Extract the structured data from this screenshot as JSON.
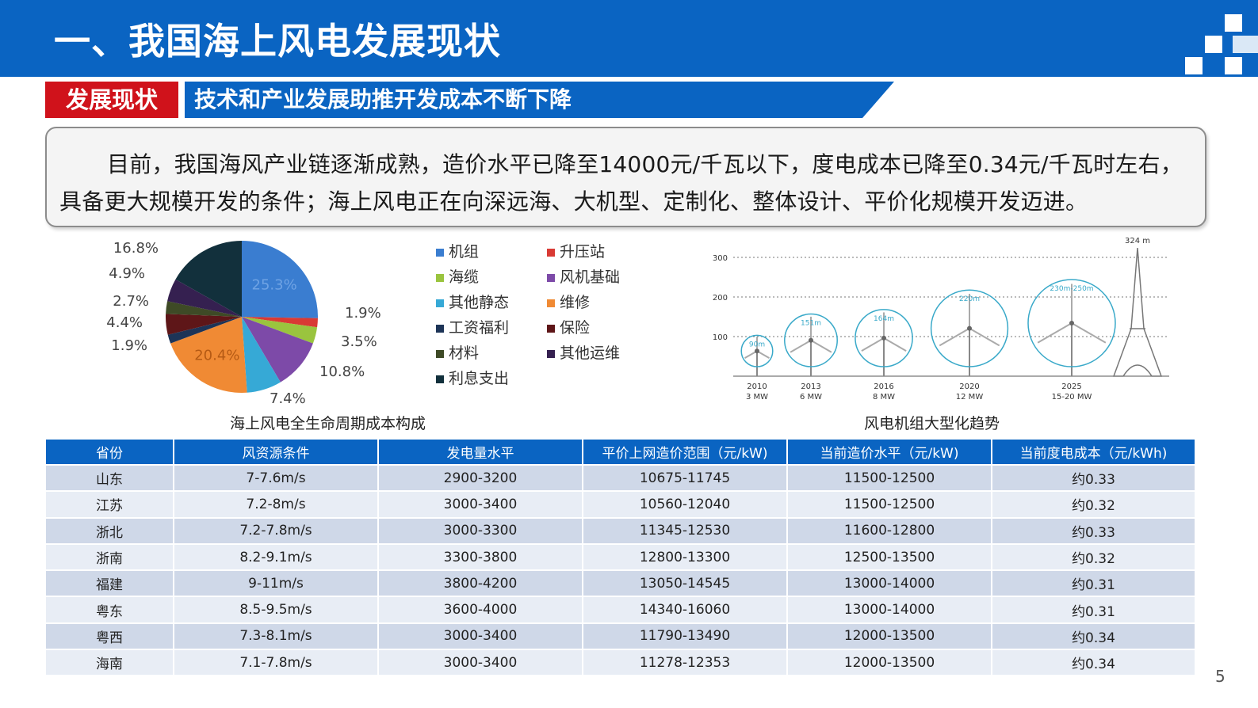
{
  "header": {
    "title": "一、我国海上风电发展现状"
  },
  "subheading": {
    "tag": "发展现状",
    "title": "技术和产业发展助推开发成本不断下降"
  },
  "summary": {
    "text": "目前，我国海风产业链逐渐成熟，造价水平已降至14000元/千瓦以下，度电成本已降至0.34元/千瓦时左右，具备更大规模开发的条件；海上风电正在向深远海、大机型、定制化、整体设计、平价化规模开发迈进。"
  },
  "chart_data": [
    {
      "type": "pie",
      "title": "海上风电全生命周期成本构成",
      "slices": [
        {
          "label": "机组",
          "value": 25.3,
          "display": "25.3%",
          "color": "#3a7dd0"
        },
        {
          "label": "升压站",
          "value": 1.9,
          "display": "1.9%",
          "color": "#d93a34"
        },
        {
          "label": "海缆",
          "value": 3.5,
          "display": "3.5%",
          "color": "#9ac43e"
        },
        {
          "label": "风机基础",
          "value": 10.8,
          "display": "10.8%",
          "color": "#7d4aa8"
        },
        {
          "label": "其他静态",
          "value": 7.4,
          "display": "7.4%",
          "color": "#36a9d6"
        },
        {
          "label": "维修",
          "value": 20.4,
          "display": "20.4%",
          "color": "#f08a34"
        },
        {
          "label": "工资福利",
          "value": 1.9,
          "display": "1.9%",
          "color": "#1d3457"
        },
        {
          "label": "保险",
          "value": 4.4,
          "display": "4.4%",
          "color": "#5e1618"
        },
        {
          "label": "材料",
          "value": 2.7,
          "display": "2.7%",
          "color": "#3e4a26"
        },
        {
          "label": "其他运维",
          "value": 4.9,
          "display": "4.9%",
          "color": "#352050"
        },
        {
          "label": "利息支出",
          "value": 16.8,
          "display": "16.8%",
          "color": "#12303c"
        }
      ],
      "legend": [
        "机组",
        "升压站",
        "海缆",
        "风机基础",
        "其他静态",
        "维修",
        "工资福利",
        "保险",
        "材料",
        "其他运维",
        "利息支出"
      ]
    },
    {
      "type": "scatter",
      "title": "风电机组大型化趋势",
      "y_ticks": [
        100,
        200,
        300
      ],
      "y_range": [
        0,
        330
      ],
      "points": [
        {
          "year": "2010",
          "capacity": "3 MW",
          "diameter_label": "90m",
          "diameter": 90
        },
        {
          "year": "2013",
          "capacity": "6 MW",
          "diameter_label": "151m",
          "diameter": 151
        },
        {
          "year": "2016",
          "capacity": "8 MW",
          "diameter_label": "164m",
          "diameter": 164
        },
        {
          "year": "2020",
          "capacity": "12 MW",
          "diameter_label": "220m",
          "diameter": 220
        },
        {
          "year": "2025",
          "capacity": "15-20 MW",
          "diameter_label": "230m-250m",
          "diameter": 250
        }
      ],
      "tower_label": "324 m",
      "tower_height": 324
    }
  ],
  "table": {
    "headers": [
      "省份",
      "风资源条件",
      "发电量水平",
      "平价上网造价范围（元/kW)",
      "当前造价水平（元/kW)",
      "当前度电成本（元/kWh)"
    ],
    "rows": [
      [
        "山东",
        "7-7.6m/s",
        "2900-3200",
        "10675-11745",
        "11500-12500",
        "约0.33"
      ],
      [
        "江苏",
        "7.2-8m/s",
        "3000-3400",
        "10560-12040",
        "11500-12500",
        "约0.32"
      ],
      [
        "浙北",
        "7.2-7.8m/s",
        "3000-3300",
        "11345-12530",
        "11600-12800",
        "约0.33"
      ],
      [
        "浙南",
        "8.2-9.1m/s",
        "3300-3800",
        "12800-13300",
        "12500-13500",
        "约0.32"
      ],
      [
        "福建",
        "9-11m/s",
        "3800-4200",
        "13050-14545",
        "13000-14000",
        "约0.31"
      ],
      [
        "粤东",
        "8.5-9.5m/s",
        "3600-4000",
        "14340-16060",
        "13000-14000",
        "约0.31"
      ],
      [
        "粤西",
        "7.3-8.1m/s",
        "3000-3400",
        "11790-13490",
        "12000-13500",
        "约0.34"
      ],
      [
        "海南",
        "7.1-7.8m/s",
        "3000-3400",
        "11278-12353",
        "12000-13500",
        "约0.34"
      ]
    ]
  },
  "page_number": "5"
}
